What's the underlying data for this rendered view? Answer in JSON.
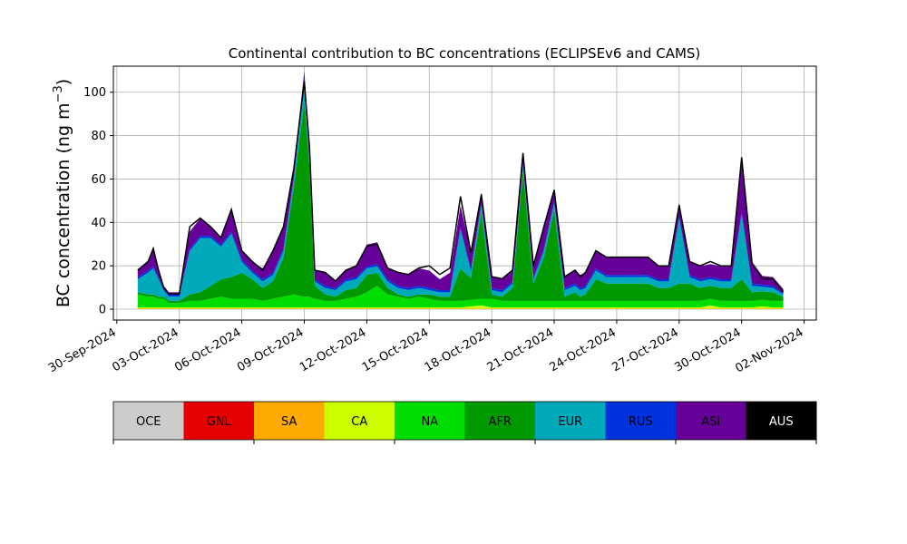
{
  "chart_data": {
    "type": "area",
    "title": "Continental contribution to BC concentrations (ECLIPSEv6 and CAMS)",
    "ylabel": "BC concentration (ng m",
    "ylabel_superscript": "−3",
    "ylabel_close": ")",
    "xlabel": "",
    "xlim": [
      "2024-09-29T20:00",
      "2024-11-02T14:00"
    ],
    "ylim": [
      -5,
      112
    ],
    "yticks": [
      0,
      20,
      40,
      60,
      80,
      100
    ],
    "xticks": [
      "2024-09-30",
      "2024-10-03",
      "2024-10-06",
      "2024-10-09",
      "2024-10-12",
      "2024-10-15",
      "2024-10-18",
      "2024-10-21",
      "2024-10-24",
      "2024-10-27",
      "2024-10-30",
      "2024-11-02"
    ],
    "xtick_labels": [
      "30-Sep-2024",
      "03-Oct-2024",
      "06-Oct-2024",
      "09-Oct-2024",
      "12-Oct-2024",
      "15-Oct-2024",
      "18-Oct-2024",
      "21-Oct-2024",
      "24-Oct-2024",
      "27-Oct-2024",
      "30-Oct-2024",
      "02-Nov-2024"
    ],
    "grid": true,
    "legend_placement": "bottom colorbar",
    "x": [
      "2024-10-01T00:00",
      "2024-10-01T12:00",
      "2024-10-01T18:00",
      "2024-10-02T00:00",
      "2024-10-02T06:00",
      "2024-10-02T12:00",
      "2024-10-02T18:00",
      "2024-10-03T00:00",
      "2024-10-03T12:00",
      "2024-10-04T00:00",
      "2024-10-04T12:00",
      "2024-10-05T00:00",
      "2024-10-05T12:00",
      "2024-10-06T00:00",
      "2024-10-06T12:00",
      "2024-10-07T00:00",
      "2024-10-07T12:00",
      "2024-10-08T00:00",
      "2024-10-08T12:00",
      "2024-10-09T00:00",
      "2024-10-09T06:00",
      "2024-10-09T12:00",
      "2024-10-10T00:00",
      "2024-10-10T12:00",
      "2024-10-11T00:00",
      "2024-10-11T12:00",
      "2024-10-12T00:00",
      "2024-10-12T12:00",
      "2024-10-13T00:00",
      "2024-10-13T12:00",
      "2024-10-14T00:00",
      "2024-10-14T12:00",
      "2024-10-15T00:00",
      "2024-10-15T12:00",
      "2024-10-16T00:00",
      "2024-10-16T12:00",
      "2024-10-17T00:00",
      "2024-10-17T12:00",
      "2024-10-18T00:00",
      "2024-10-18T12:00",
      "2024-10-19T00:00",
      "2024-10-19T12:00",
      "2024-10-20T00:00",
      "2024-10-20T12:00",
      "2024-10-21T00:00",
      "2024-10-21T12:00",
      "2024-10-22T00:00",
      "2024-10-22T06:00",
      "2024-10-22T12:00",
      "2024-10-23T00:00",
      "2024-10-23T12:00",
      "2024-10-24T00:00",
      "2024-10-24T12:00",
      "2024-10-25T00:00",
      "2024-10-25T12:00",
      "2024-10-26T00:00",
      "2024-10-26T12:00",
      "2024-10-27T00:00",
      "2024-10-27T12:00",
      "2024-10-28T00:00",
      "2024-10-28T12:00",
      "2024-10-29T00:00",
      "2024-10-29T12:00",
      "2024-10-30T00:00",
      "2024-10-30T12:00",
      "2024-10-31T00:00",
      "2024-10-31T12:00",
      "2024-11-01T00:00"
    ],
    "series": [
      {
        "name": "OCE",
        "color": "#cccccc",
        "values": [
          0,
          0,
          0,
          0,
          0,
          0,
          0,
          0,
          0,
          0,
          0,
          0,
          0,
          0,
          0,
          0,
          0,
          0,
          0,
          0,
          0,
          0,
          0,
          0,
          0,
          0,
          0,
          0,
          0,
          0,
          0,
          0,
          0,
          0,
          0,
          0,
          0,
          0,
          0,
          0,
          0,
          0,
          0,
          0,
          0,
          0,
          0,
          0,
          0,
          0,
          0,
          0,
          0,
          0,
          0,
          0,
          0,
          0,
          0,
          0,
          0,
          0,
          0,
          0,
          0,
          0,
          0,
          0
        ]
      },
      {
        "name": "GNL",
        "color": "#e60000",
        "values": [
          0,
          0,
          0,
          0,
          0,
          0,
          0,
          0,
          0,
          0,
          0,
          0,
          0,
          0,
          0,
          0,
          0,
          0,
          0,
          0,
          0,
          0,
          0,
          0,
          0,
          0,
          0,
          0,
          0,
          0,
          0,
          0,
          0,
          0,
          0,
          0,
          0,
          0,
          0,
          0,
          0,
          0,
          0,
          0,
          0,
          0,
          0,
          0,
          0,
          0,
          0,
          0,
          0,
          0,
          0,
          0,
          0,
          0,
          0,
          0,
          0,
          0,
          0,
          0,
          0,
          0,
          0,
          0
        ]
      },
      {
        "name": "SA",
        "color": "#ffaa00",
        "values": [
          0.3,
          0.3,
          0.3,
          0.3,
          0.3,
          0.3,
          0.3,
          0.3,
          0.3,
          0.3,
          0.3,
          0.3,
          0.3,
          0.3,
          0.3,
          0.3,
          0.3,
          0.3,
          0.3,
          0.3,
          0.3,
          0.3,
          0.3,
          0.3,
          0.3,
          0.3,
          0.3,
          0.3,
          0.3,
          0.3,
          0.3,
          0.3,
          0.3,
          0.3,
          0.3,
          0.3,
          0.3,
          0.3,
          0.3,
          0.3,
          0.3,
          0.3,
          0.3,
          0.3,
          0.3,
          0.3,
          0.3,
          0.3,
          0.3,
          0.3,
          0.3,
          0.3,
          0.3,
          0.3,
          0.3,
          0.3,
          0.3,
          0.3,
          0.3,
          0.3,
          0.3,
          0.3,
          0.3,
          0.3,
          0.3,
          0.3,
          0.3,
          0.3
        ]
      },
      {
        "name": "CA",
        "color": "#ccff00",
        "values": [
          0.5,
          0.5,
          0.5,
          0.5,
          0.5,
          0.5,
          0.5,
          0.5,
          0.5,
          0.5,
          0.5,
          0.5,
          0.5,
          0.5,
          0.5,
          0.5,
          0.5,
          0.5,
          0.5,
          0.5,
          0.5,
          0.5,
          0.5,
          0.5,
          0.5,
          0.5,
          0.5,
          0.5,
          0.5,
          0.5,
          0.5,
          0.5,
          0.5,
          0.5,
          0.5,
          0.5,
          1.0,
          1.5,
          0.5,
          0.5,
          0.5,
          0.5,
          0.5,
          0.5,
          0.5,
          0.5,
          0.5,
          0.5,
          0.5,
          0.5,
          0.5,
          0.5,
          0.5,
          0.5,
          0.5,
          0.5,
          0.5,
          0.5,
          0.5,
          0.5,
          1.5,
          0.5,
          0.5,
          0.5,
          0.5,
          1.0,
          0.5,
          0.5
        ]
      },
      {
        "name": "NA",
        "color": "#00dd00",
        "values": [
          6,
          5,
          5,
          4,
          4,
          2,
          2,
          2,
          3,
          3,
          4,
          5,
          4,
          4,
          4,
          3,
          4,
          5,
          6,
          5,
          5,
          4,
          3,
          3,
          4,
          5,
          7,
          10,
          6,
          5,
          4,
          5,
          4,
          3,
          3,
          3,
          3,
          3,
          4,
          3,
          3,
          3,
          3,
          3,
          3,
          3,
          3,
          3,
          3,
          3,
          3,
          3,
          3,
          3,
          3,
          3,
          3,
          3,
          3,
          3,
          3,
          3,
          3,
          3,
          3,
          3,
          3,
          3
        ]
      },
      {
        "name": "AFR",
        "color": "#009900",
        "values": [
          1,
          1,
          1,
          1,
          1,
          1,
          1,
          1,
          3,
          4,
          6,
          8,
          10,
          12,
          9,
          6,
          8,
          18,
          50,
          90,
          60,
          6,
          3,
          2,
          4,
          4,
          8,
          6,
          3,
          1,
          1,
          1,
          2,
          2,
          2,
          15,
          10,
          40,
          2,
          2,
          6,
          60,
          8,
          20,
          42,
          2,
          4,
          2,
          3,
          10,
          8,
          8,
          8,
          8,
          8,
          6,
          6,
          8,
          8,
          6,
          6,
          6,
          6,
          10,
          4,
          4,
          4,
          2
        ]
      },
      {
        "name": "EUR",
        "color": "#00aabb",
        "values": [
          6,
          10,
          12,
          8,
          3,
          2,
          2,
          2,
          20,
          25,
          22,
          15,
          20,
          5,
          3,
          3,
          3,
          3,
          3,
          8,
          3,
          2,
          3,
          3,
          4,
          4,
          3,
          3,
          3,
          3,
          3,
          3,
          2,
          2,
          2,
          18,
          3,
          3,
          2,
          2,
          2,
          2,
          2,
          3,
          3,
          3,
          3,
          3,
          3,
          4,
          3,
          3,
          3,
          3,
          3,
          3,
          3,
          30,
          3,
          3,
          3,
          3,
          3,
          30,
          3,
          2,
          2,
          1
        ]
      },
      {
        "name": "RUS",
        "color": "#0033dd",
        "values": [
          1,
          1,
          1,
          1,
          1,
          1,
          1,
          1,
          1,
          1,
          1,
          1,
          1,
          1,
          1,
          1,
          1,
          1,
          1,
          1,
          1,
          1,
          1,
          1,
          1,
          1,
          1,
          1,
          1,
          1,
          1,
          1,
          1,
          1,
          1,
          1,
          1,
          1,
          1,
          1,
          1,
          1,
          1,
          1,
          1,
          1,
          1,
          1,
          1,
          1,
          1,
          1,
          1,
          1,
          1,
          1,
          1,
          1,
          1,
          1,
          1,
          1,
          1,
          1,
          1,
          1,
          1,
          0.5
        ]
      },
      {
        "name": "ASI",
        "color": "#660099",
        "values": [
          3,
          4,
          8,
          3,
          1,
          1,
          1,
          1,
          8,
          8,
          4,
          3,
          10,
          4,
          4,
          5,
          10,
          10,
          4,
          5,
          5,
          4,
          6,
          3,
          4,
          5,
          10,
          10,
          5,
          6,
          6,
          8,
          8,
          5,
          8,
          10,
          8,
          5,
          5,
          5,
          5,
          5,
          5,
          10,
          5,
          5,
          6,
          6,
          6,
          8,
          8,
          8,
          8,
          8,
          8,
          6,
          6,
          6,
          6,
          6,
          6,
          6,
          6,
          25,
          10,
          4,
          4,
          2
        ]
      },
      {
        "name": "AUS",
        "color": "#000000",
        "values": [
          0,
          0,
          0,
          0,
          0,
          0,
          0,
          0,
          0,
          0,
          0,
          0,
          0,
          0,
          0,
          0,
          0,
          0,
          0,
          0,
          0,
          0,
          0,
          0,
          0,
          0,
          0,
          0,
          0,
          0,
          0,
          0,
          0,
          0,
          0,
          0,
          0,
          0,
          0,
          0,
          0,
          0,
          0,
          0,
          0,
          0,
          0,
          0,
          0,
          0,
          0,
          0,
          0,
          0,
          0,
          0,
          0,
          0,
          0,
          0,
          0,
          0,
          0,
          0,
          0,
          0,
          0,
          0
        ]
      }
    ],
    "total": {
      "values": [
        18,
        22,
        28,
        18,
        10,
        7,
        7,
        7,
        38,
        42,
        38,
        33,
        46,
        27,
        22,
        18,
        27,
        38,
        65,
        105,
        75,
        18,
        17,
        13,
        18,
        20,
        29,
        30,
        19,
        17,
        16,
        19,
        20,
        16,
        19,
        52,
        26,
        53,
        15,
        14,
        18,
        72,
        20,
        38,
        55,
        15,
        18,
        15,
        17,
        27,
        24,
        24,
        24,
        24,
        24,
        20,
        20,
        48,
        22,
        20,
        22,
        20,
        20,
        70,
        21,
        14,
        14,
        8
      ]
    },
    "colorbar": {
      "labels": [
        "OCE",
        "GNL",
        "SA",
        "CA",
        "NA",
        "AFR",
        "EUR",
        "RUS",
        "ASI",
        "AUS"
      ],
      "colors": [
        "#cccccc",
        "#e60000",
        "#ffaa00",
        "#ccff00",
        "#00dd00",
        "#009900",
        "#00aabb",
        "#0033dd",
        "#660099",
        "#000000"
      ],
      "text_colors": [
        "#000000",
        "#000000",
        "#000000",
        "#000000",
        "#000000",
        "#000000",
        "#000000",
        "#000000",
        "#000000",
        "#ffffff"
      ]
    }
  }
}
